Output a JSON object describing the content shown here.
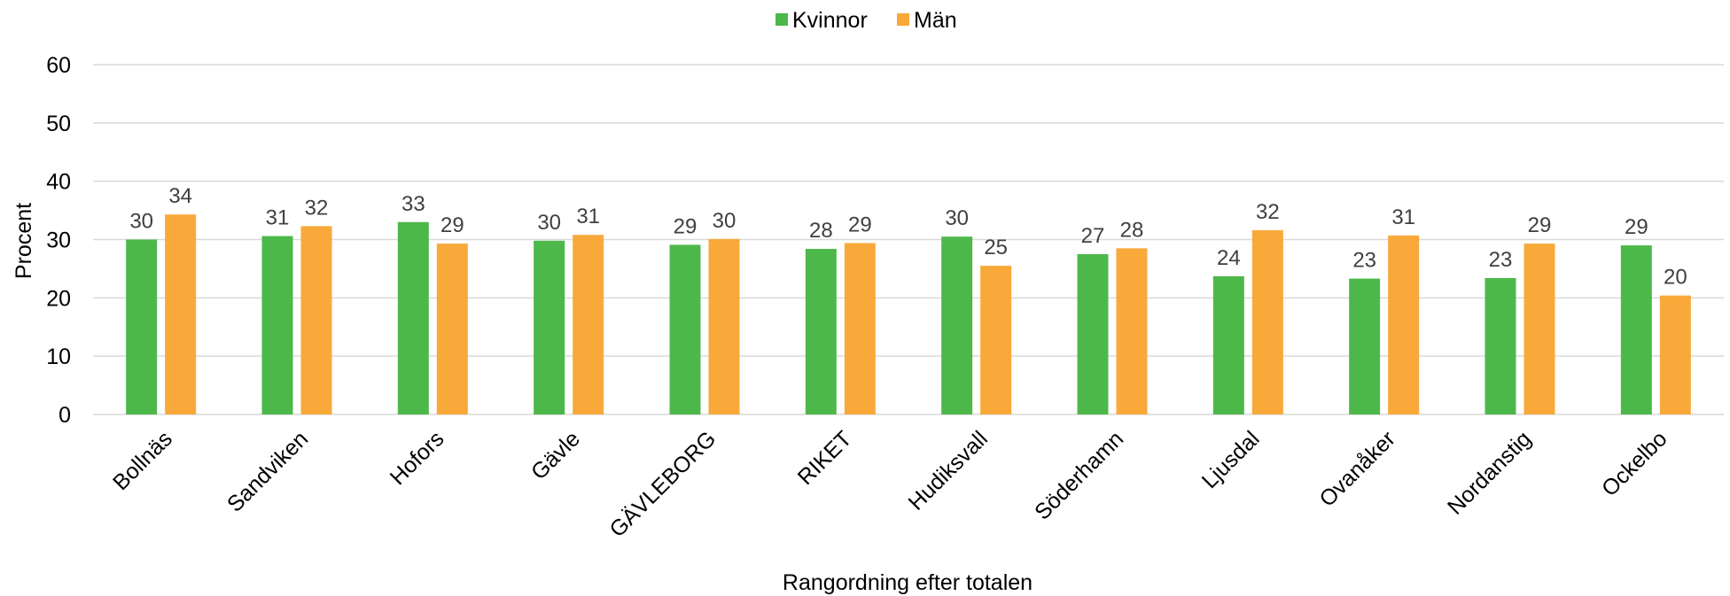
{
  "chart_data": {
    "type": "bar",
    "categories": [
      "Bollnäs",
      "Sandviken",
      "Hofors",
      "Gävle",
      "GÄVLEBORG",
      "RIKET",
      "Hudiksvall",
      "Söderhamn",
      "Ljusdal",
      "Ovanåker",
      "Nordanstig",
      "Ockelbo"
    ],
    "series": [
      {
        "name": "Kvinnor",
        "color": "#4db84a",
        "values": [
          30,
          30.6,
          33,
          29.8,
          29.1,
          28.4,
          30.5,
          27.5,
          23.7,
          23.3,
          23.4,
          29
        ],
        "labels": [
          "30",
          "31",
          "33",
          "30",
          "29",
          "28",
          "30",
          "27",
          "24",
          "23",
          "23",
          "29"
        ]
      },
      {
        "name": "Män",
        "color": "#f8a93a",
        "values": [
          34.3,
          32.3,
          29.3,
          30.8,
          30.1,
          29.4,
          25.5,
          28.5,
          31.6,
          30.7,
          29.3,
          20.4
        ],
        "labels": [
          "34",
          "32",
          "29",
          "31",
          "30",
          "29",
          "25",
          "28",
          "32",
          "31",
          "29",
          "20"
        ]
      }
    ],
    "ylabel": "Procent",
    "xlabel": "Rangordning efter totalen",
    "ylim": [
      0,
      60
    ],
    "yticks": [
      "0",
      "10",
      "20",
      "30",
      "40",
      "50",
      "60"
    ],
    "grid": true,
    "legend_position": "top-center",
    "gridline_color": "#d9d9d9"
  }
}
